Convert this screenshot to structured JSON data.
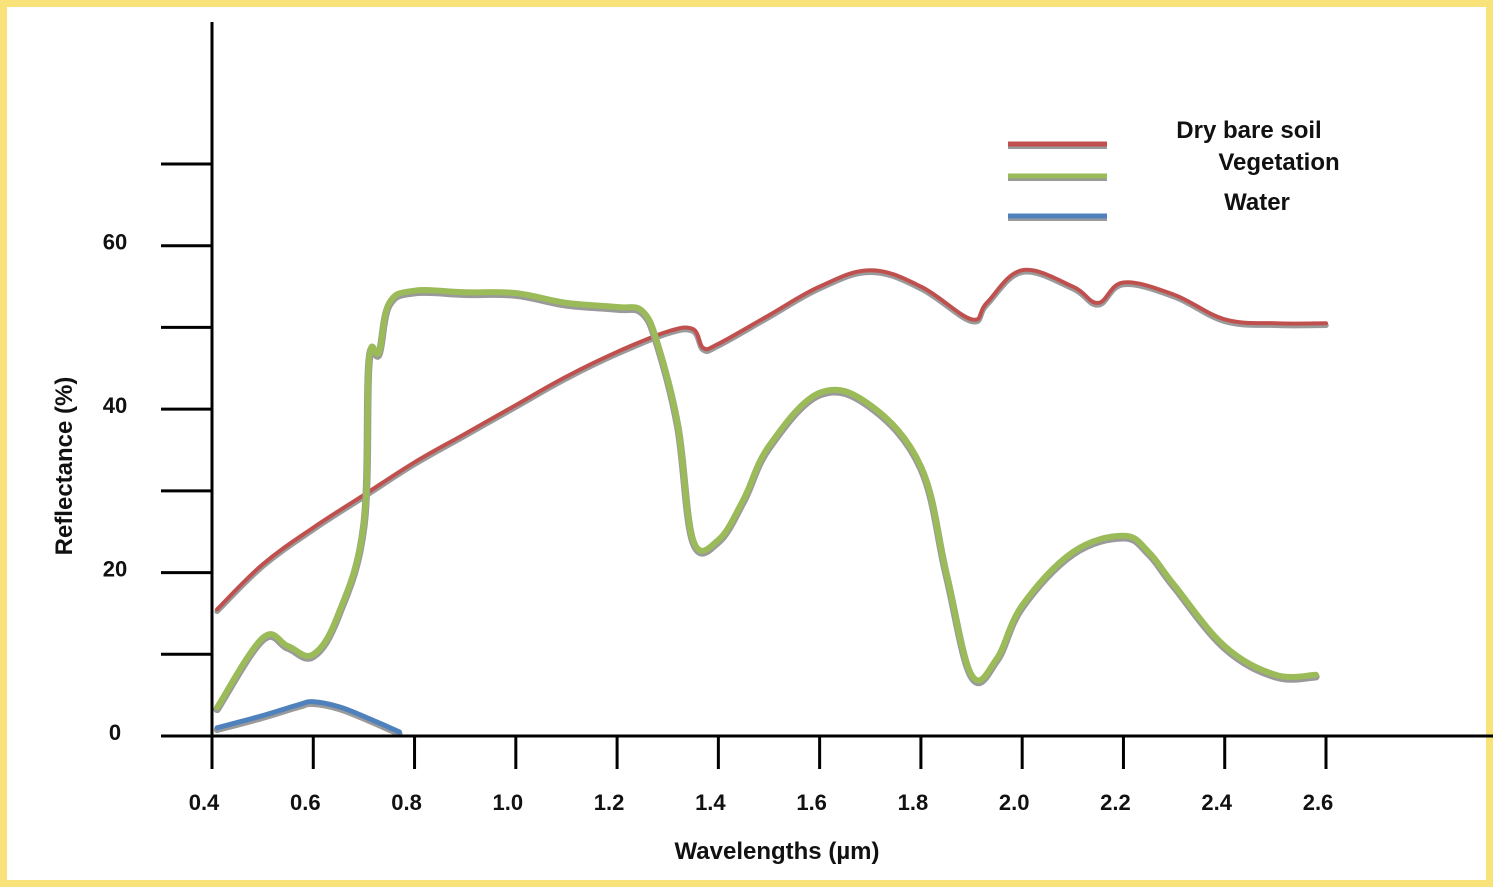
{
  "chart_data": {
    "type": "line",
    "xlabel": "Wavelengths (µm)",
    "ylabel": "Reflectance (%)",
    "xlim": [
      0.4,
      2.6
    ],
    "ylim": [
      0,
      70
    ],
    "x_ticks": [
      0.4,
      0.6,
      0.8,
      1.0,
      1.2,
      1.4,
      1.6,
      1.8,
      2.0,
      2.2,
      2.4,
      2.6
    ],
    "x_tick_labels": [
      "0.4",
      "0.6",
      "0.8",
      "1.0",
      "1.2",
      "1.4",
      "1.6",
      "1.8",
      "2.0",
      "2.2",
      "2.4",
      "2.6"
    ],
    "y_ticks": [
      0,
      10,
      20,
      30,
      40,
      50,
      60,
      70
    ],
    "y_tick_labels": [
      "0",
      "",
      "20",
      "",
      "40",
      "",
      "60",
      ""
    ],
    "grid": false,
    "legend_position": "top-right",
    "series": [
      {
        "name": "Dry bare soil",
        "color": "#c0504d",
        "x": [
          0.41,
          0.5,
          0.6,
          0.7,
          0.8,
          0.9,
          1.0,
          1.1,
          1.2,
          1.3,
          1.35,
          1.37,
          1.4,
          1.5,
          1.6,
          1.7,
          1.8,
          1.9,
          1.93,
          2.0,
          2.1,
          2.15,
          2.2,
          2.3,
          2.4,
          2.5,
          2.6
        ],
        "y": [
          15.5,
          21,
          25.5,
          29.5,
          33.5,
          37,
          40.5,
          44,
          47,
          49.5,
          49.8,
          47.5,
          48,
          51.5,
          55,
          57,
          55,
          51,
          53,
          57,
          55,
          53,
          55.5,
          54,
          51,
          50.5,
          50.5
        ]
      },
      {
        "name": "Vegetation",
        "color": "#9bbb59",
        "x": [
          0.41,
          0.5,
          0.55,
          0.6,
          0.65,
          0.7,
          0.71,
          0.73,
          0.75,
          0.8,
          0.9,
          1.0,
          1.1,
          1.2,
          1.25,
          1.28,
          1.32,
          1.35,
          1.4,
          1.45,
          1.5,
          1.6,
          1.7,
          1.8,
          1.85,
          1.9,
          1.95,
          2.0,
          2.1,
          2.2,
          2.25,
          2.3,
          2.4,
          2.5,
          2.58
        ],
        "y": [
          3.5,
          12,
          11,
          10,
          15,
          26,
          46,
          47,
          53,
          54.5,
          54.3,
          54.2,
          53,
          52.5,
          52,
          48,
          38,
          24,
          24,
          29,
          35.5,
          42,
          40.5,
          33,
          20,
          7.5,
          9.5,
          16,
          22.5,
          24.5,
          22.5,
          18.5,
          11,
          7.5,
          7.5
        ]
      },
      {
        "name": "Water",
        "color": "#4f81bd",
        "x": [
          0.41,
          0.5,
          0.57,
          0.6,
          0.65,
          0.7,
          0.77
        ],
        "y": [
          1,
          2.5,
          3.8,
          4.2,
          3.6,
          2.4,
          0.5
        ]
      }
    ]
  }
}
